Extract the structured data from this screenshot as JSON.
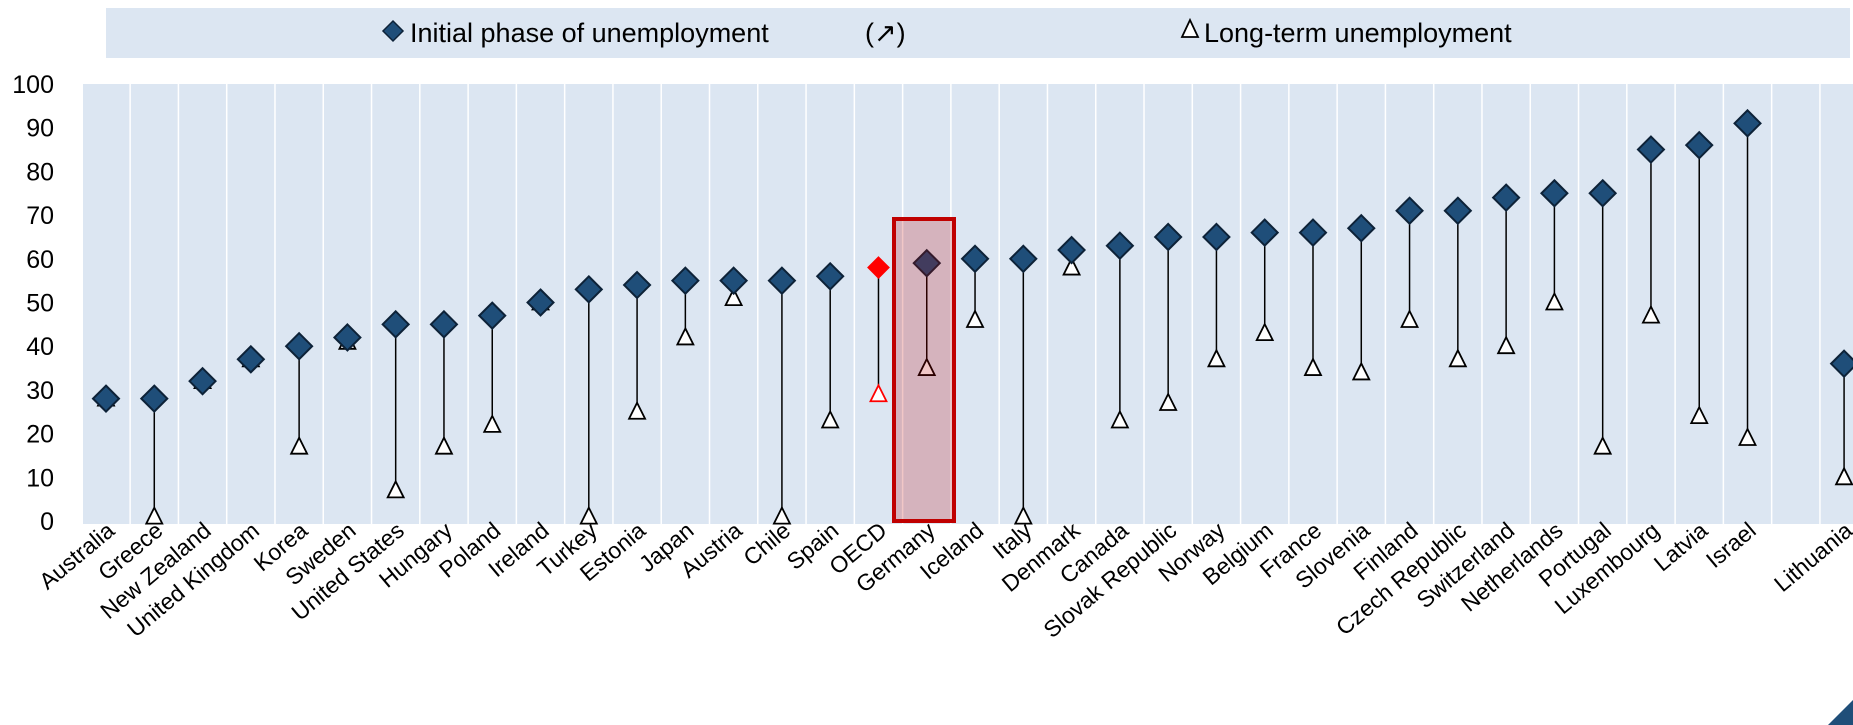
{
  "chart_data": {
    "type": "scatter",
    "title": "",
    "xlabel": "",
    "ylabel": "",
    "ylim": [
      0,
      100
    ],
    "yticks": [
      "0",
      "10",
      "20",
      "30",
      "40",
      "50",
      "60",
      "70",
      "80",
      "90",
      "100"
    ],
    "grid": true,
    "legend_position": "top",
    "legend": {
      "initial_label": "Initial phase of unemployment",
      "sort_marker": "(↗)",
      "longterm_label": "Long-term unemployment"
    },
    "categories": [
      "Australia",
      "Greece",
      "New Zealand",
      "United Kingdom",
      "Korea",
      "Sweden",
      "United States",
      "Hungary",
      "Poland",
      "Ireland",
      "Turkey",
      "Estonia",
      "Japan",
      "Austria",
      "Chile",
      "Spain",
      "OECD",
      "Germany",
      "Iceland",
      "Italy",
      "Denmark",
      "Canada",
      "Slovak Republic",
      "Norway",
      "Belgium",
      "France",
      "Slovenia",
      "Finland",
      "Czech Republic",
      "Switzerland",
      "Netherlands",
      "Portugal",
      "Luxembourg",
      "Latvia",
      "Israel",
      "",
      "Lithuania"
    ],
    "series": [
      {
        "name": "Initial phase of unemployment",
        "values": [
          28,
          28,
          32,
          37,
          40,
          42,
          45,
          45,
          47,
          50,
          53,
          54,
          55,
          55,
          55,
          56,
          58,
          59,
          60,
          60,
          62,
          63,
          65,
          65,
          66,
          66,
          67,
          71,
          71,
          74,
          75,
          75,
          85,
          86,
          91,
          null,
          36
        ]
      },
      {
        "name": "Long-term unemployment",
        "values": [
          28,
          1,
          32,
          37,
          17,
          41,
          7,
          17,
          22,
          50,
          1,
          25,
          42,
          51,
          1,
          23,
          29,
          35,
          46,
          1,
          58,
          23,
          27,
          37,
          43,
          35,
          34,
          46,
          37,
          40,
          50,
          17,
          47,
          24,
          19,
          null,
          10
        ]
      }
    ],
    "highlight_category": "Germany",
    "highlight_point": "OECD",
    "colors": {
      "plot_bg": "#dce6f2",
      "legend_bg": "#dce6f2",
      "initial_marker": "#1f4e79",
      "longterm_marker": "#ffffff",
      "oecd_marker": "#ff0000",
      "highlight_box": "#c00000"
    }
  }
}
